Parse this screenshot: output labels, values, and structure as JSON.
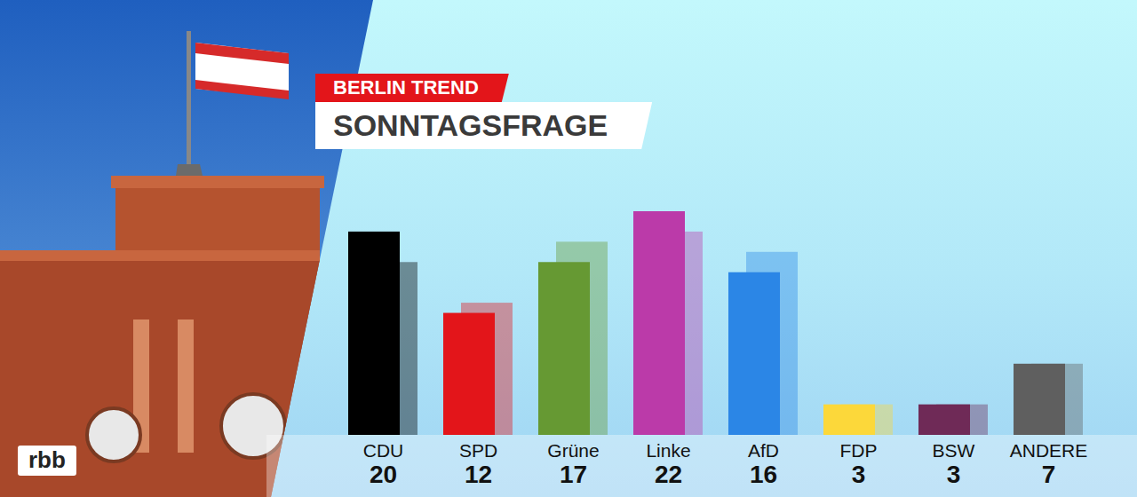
{
  "logo": "rbb",
  "chart_data": {
    "type": "bar",
    "subtitle": "BERLIN TREND",
    "title": "SONNTAGSFRAGE",
    "categories": [
      "CDU",
      "SPD",
      "Grüne",
      "Linke",
      "AfD",
      "FDP",
      "BSW",
      "ANDERE"
    ],
    "values": [
      20,
      12,
      17,
      22,
      16,
      3,
      3,
      7
    ],
    "previous_values": [
      17,
      13,
      19,
      20,
      18,
      3,
      3,
      7
    ],
    "colors": [
      "#000000",
      "#e3151a",
      "#669933",
      "#bb3aa9",
      "#2b86e6",
      "#fcd83a",
      "#6f2a57",
      "#5f5f5f"
    ],
    "ylim": [
      0,
      22
    ],
    "data_labels": true,
    "tick_labels": false
  }
}
